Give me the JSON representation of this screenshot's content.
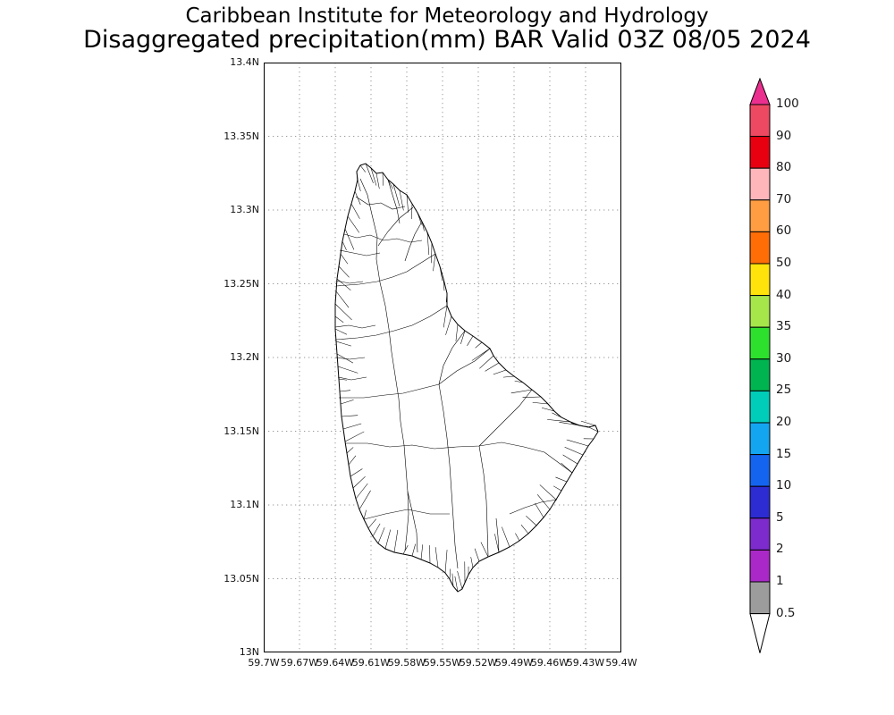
{
  "title": {
    "line1": "Caribbean Institute for Meteorology and Hydrology",
    "line2": "Disaggregated precipitation(mm) BAR Valid 03Z 08/05 2024"
  },
  "map": {
    "y_tick_labels": [
      "13.4N",
      "13.35N",
      "13.3N",
      "13.25N",
      "13.2N",
      "13.15N",
      "13.1N",
      "13.05N",
      "13N"
    ],
    "x_tick_labels": [
      "59.7W",
      "59.67W",
      "59.64W",
      "59.61W",
      "59.58W",
      "59.55W",
      "59.52W",
      "59.49W",
      "59.46W",
      "59.43W",
      "59.4W"
    ]
  },
  "colorbar": {
    "labels": [
      "100",
      "90",
      "80",
      "70",
      "60",
      "50",
      "40",
      "35",
      "30",
      "25",
      "20",
      "15",
      "10",
      "5",
      "2",
      "1",
      "0.5"
    ],
    "segment_colors_top_to_bottom": [
      "#ee4962",
      "#e80010",
      "#ffb6bb",
      "#ff9d42",
      "#ff6d07",
      "#ffe30a",
      "#a6e64b",
      "#2ee02e",
      "#00b450",
      "#00cdb9",
      "#14a5f0",
      "#1464f0",
      "#2d2bd2",
      "#7d2bcd",
      "#aa28c8",
      "#9c9c9c"
    ],
    "above_max_color": "#ea2f8f",
    "below_min_color": "#ffffff"
  },
  "chart_data": {
    "type": "map",
    "institution": "Caribbean Institute for Meteorology and Hydrology",
    "title": "Disaggregated precipitation(mm) BAR Valid 03Z 08/05 2024",
    "variable": "Disaggregated precipitation",
    "units": "mm",
    "region_code": "BAR",
    "valid_time": "03Z 08/05 2024",
    "lat_axis": {
      "min_label": "13N",
      "max_label": "13.4N",
      "tick_interval_deg": 0.05
    },
    "lon_axis": {
      "min_label": "59.7W",
      "max_label": "59.4W",
      "tick_interval_deg": 0.03
    },
    "colorbar_levels": [
      0.5,
      1,
      2,
      5,
      10,
      15,
      20,
      25,
      30,
      35,
      40,
      50,
      60,
      70,
      80,
      90,
      100
    ],
    "grid": true,
    "legend_position": "right"
  }
}
